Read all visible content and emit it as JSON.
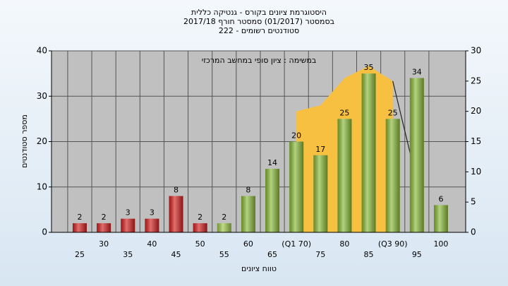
{
  "chart_data": {
    "type": "bar",
    "title": [
      "היסטוגרמת ציונים בקורס - גנטיקה כללית",
      "בסמסטר  (01/2017)  סמסטר חורף 2017/18",
      "סטודנטים רשומים - 222"
    ],
    "annotation": "במשימה : ציון סופי במחשב המרכזי",
    "x_label": "טווח ציונים",
    "y_label": "מספר סטודנטים",
    "categories": [
      "25",
      "30",
      "35",
      "40",
      "45",
      "50",
      "55",
      "60",
      "65",
      "(Q1 70)",
      "75",
      "80",
      "85",
      "(Q3 90)",
      "95",
      "100"
    ],
    "series": [
      {
        "type": "bar",
        "colors": [
          "#d42020",
          "#d42020",
          "#d42020",
          "#d42020",
          "#d42020",
          "#d42020",
          "#9fc94a",
          "#8bbb3a",
          "#8bbb3a",
          "#8bbb3a",
          "#8bbb3a",
          "#8bbb3a",
          "#8bbb3a",
          "#8bbb3a",
          "#8bbb3a",
          "#8bbb3a"
        ],
        "values": [
          2,
          2,
          3,
          3,
          8,
          2,
          2,
          8,
          14,
          20,
          17,
          25,
          35,
          25,
          34,
          6
        ]
      },
      {
        "type": "area",
        "color": "#f8c040",
        "axis": "y2",
        "values": [
          null,
          null,
          null,
          null,
          null,
          null,
          null,
          null,
          null,
          20,
          21,
          25.5,
          27.5,
          25,
          null,
          null
        ]
      },
      {
        "type": "line",
        "color": "#222222",
        "axis": "y2",
        "values": [
          null,
          null,
          null,
          null,
          null,
          null,
          null,
          null,
          null,
          null,
          null,
          null,
          null,
          25,
          8.5,
          null
        ]
      }
    ],
    "ylim": [
      0,
      40
    ],
    "yticks": [
      0,
      10,
      20,
      30,
      40
    ],
    "y2lim": [
      0,
      30
    ],
    "y2ticks": [
      0,
      5,
      10,
      15,
      20,
      25,
      30
    ],
    "grid": true
  }
}
